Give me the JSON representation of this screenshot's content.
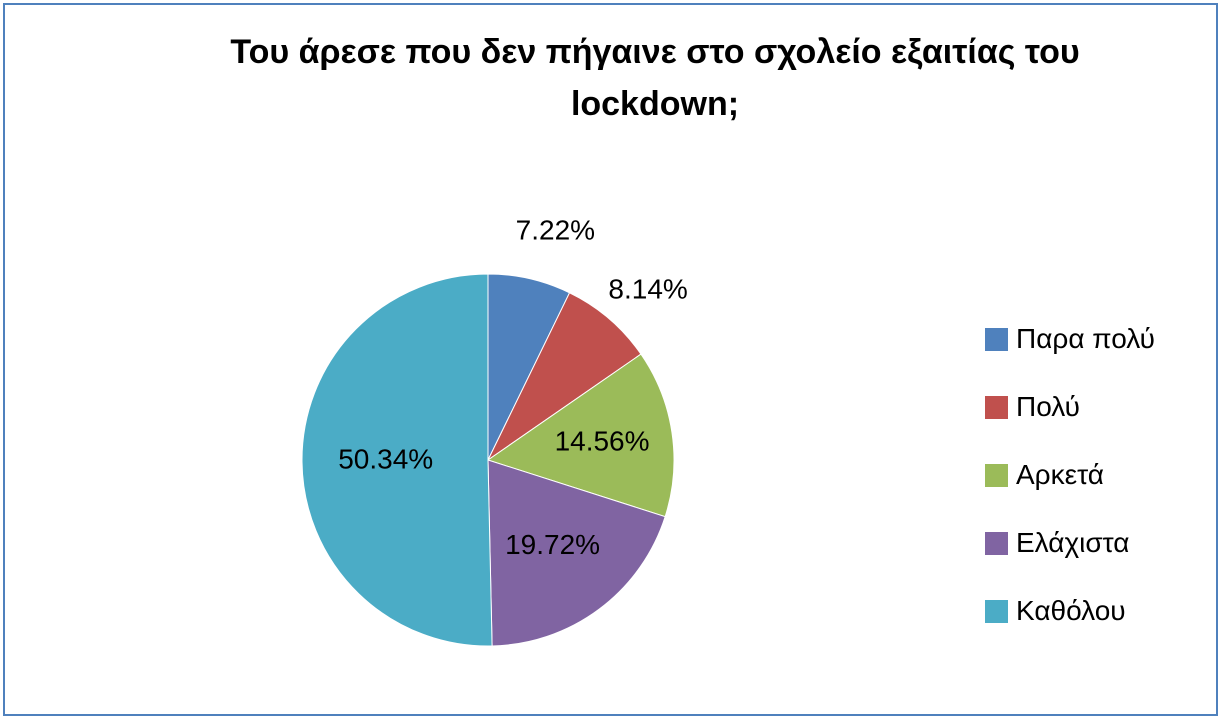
{
  "chart_data": {
    "type": "pie",
    "title": "Του άρεσε που δεν πήγαινε στο σχολείο εξαιτίας του lockdown;",
    "categories": [
      "Παρα πολύ",
      "Πολύ",
      "Αρκετά",
      "Ελάχιστα",
      "Καθόλου"
    ],
    "values": [
      7.22,
      8.14,
      14.56,
      19.72,
      50.34
    ],
    "labels": [
      "7.22%",
      "8.14%",
      "14.56%",
      "19.72%",
      "50.34%"
    ],
    "colors": [
      "#4f81bd",
      "#c0504d",
      "#9bbb59",
      "#8064a2",
      "#4bacc6"
    ],
    "legend_position": "right"
  }
}
